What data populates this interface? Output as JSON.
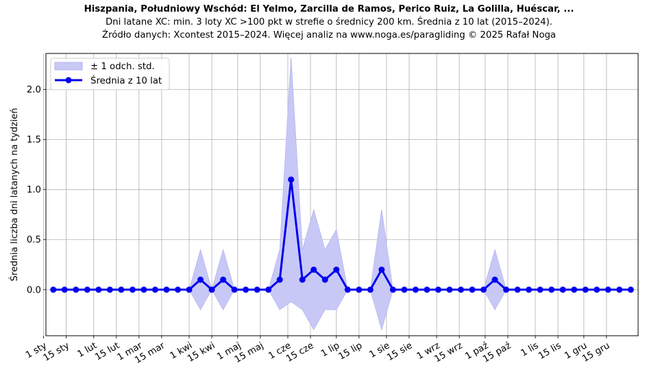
{
  "header": {
    "title": "Hiszpania, Południowy Wschód: El Yelmo, Zarcilla de Ramos, Perico Ruiz, La Golilla, Huéscar, ...",
    "subtitle": "Dni latane XC: min. 3 loty XC >100 pkt w strefie o średnicy 200 km. Średnia z 10 lat (2015–2024).",
    "source": "Źródło danych: Xcontest 2015–2024. Więcej analiz na www.noga.es/paragliding © 2025 Rafał Noga"
  },
  "colors": {
    "line": "#0000ee",
    "band_fill": "#c8c8f6",
    "band_stroke": "#b3b3f2",
    "grid": "#b0b0b0"
  },
  "chart_data": {
    "type": "line",
    "title": "Hiszpania, Południowy Wschód: El Yelmo, Zarcilla de Ramos, Perico Ruiz, La Golilla, Huéscar, ...",
    "xlabel": "",
    "ylabel": "Średnia liczba dni latanych na tydzień",
    "ylim": [
      -0.46,
      2.36
    ],
    "yticks": [
      0.0,
      0.5,
      1.0,
      1.5,
      2.0
    ],
    "ytick_labels": [
      "0.0",
      "0.5",
      "1.0",
      "1.5",
      "2.0"
    ],
    "xticks": [
      "1 sty",
      "15 sty",
      "1 lut",
      "15 lut",
      "1 mar",
      "15 mar",
      "1 kwi",
      "15 kwi",
      "1 maj",
      "15 maj",
      "1 cze",
      "15 cze",
      "1 lip",
      "15 lip",
      "1 sie",
      "15 sie",
      "1 wrz",
      "15 wrz",
      "1 paź",
      "15 paź",
      "1 lis",
      "15 lis",
      "1 gru",
      "15 gru"
    ],
    "grid": true,
    "legend_position": "top-left",
    "weeks": [
      1,
      2,
      3,
      4,
      5,
      6,
      7,
      8,
      9,
      10,
      11,
      12,
      13,
      14,
      15,
      16,
      17,
      18,
      19,
      20,
      21,
      22,
      23,
      24,
      25,
      26,
      27,
      28,
      29,
      30,
      31,
      32,
      33,
      34,
      35,
      36,
      37,
      38,
      39,
      40,
      41,
      42,
      43,
      44,
      45,
      46,
      47,
      48,
      49,
      50,
      51,
      52
    ],
    "series": [
      {
        "name": "Średnia z 10 lat",
        "values": [
          0,
          0,
          0,
          0,
          0,
          0,
          0,
          0,
          0,
          0,
          0,
          0,
          0,
          0.1,
          0,
          0.1,
          0,
          0,
          0,
          0,
          0.1,
          1.1,
          0.1,
          0.2,
          0.1,
          0.2,
          0,
          0,
          0,
          0.2,
          0,
          0,
          0,
          0,
          0,
          0,
          0,
          0,
          0,
          0.1,
          0,
          0,
          0,
          0,
          0,
          0,
          0,
          0,
          0,
          0,
          0,
          0
        ]
      },
      {
        "name": "± 1 odch. std.",
        "lower": [
          0,
          0,
          0,
          0,
          0,
          0,
          0,
          0,
          0,
          0,
          0,
          0,
          0,
          -0.2,
          0,
          -0.2,
          0,
          0,
          0,
          0,
          -0.2,
          -0.12,
          -0.2,
          -0.4,
          -0.2,
          -0.2,
          0,
          0,
          0,
          -0.4,
          0,
          0,
          0,
          0,
          0,
          0,
          0,
          0,
          0,
          -0.2,
          0,
          0,
          0,
          0,
          0,
          0,
          0,
          0,
          0,
          0,
          0,
          0
        ],
        "upper": [
          0,
          0,
          0,
          0,
          0,
          0,
          0,
          0,
          0,
          0,
          0,
          0,
          0,
          0.4,
          0,
          0.4,
          0,
          0,
          0,
          0,
          0.4,
          2.32,
          0.4,
          0.8,
          0.4,
          0.6,
          0,
          0,
          0,
          0.8,
          0,
          0,
          0,
          0,
          0,
          0,
          0,
          0,
          0,
          0.4,
          0,
          0,
          0,
          0,
          0,
          0,
          0,
          0,
          0,
          0,
          0,
          0
        ]
      }
    ]
  }
}
